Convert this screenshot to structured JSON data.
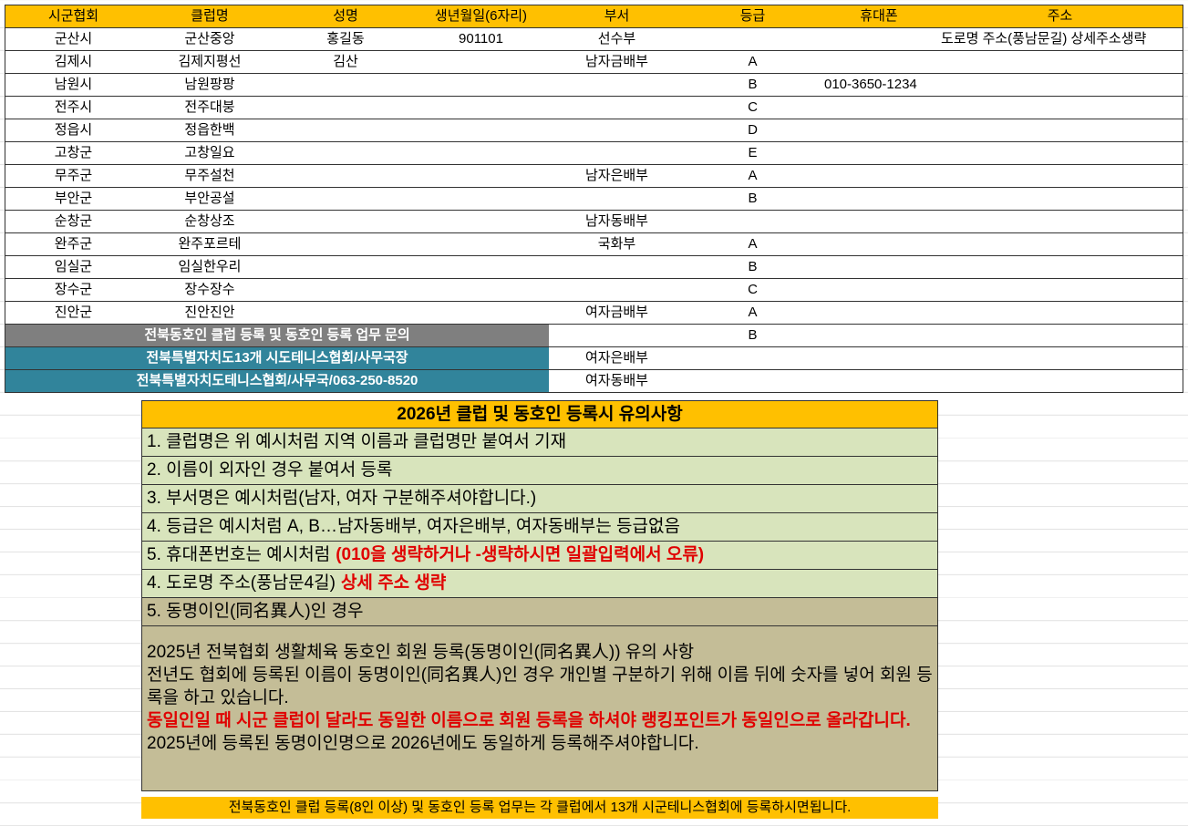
{
  "table": {
    "header": [
      "시군협회",
      "클럽명",
      "성명",
      "생년월일(6자리)",
      "부서",
      "등급",
      "휴대폰",
      "주소"
    ],
    "rows": [
      {
        "region": "군산시",
        "club": "군산중앙",
        "name": "홍길동",
        "birth": "901101",
        "dept": "선수부",
        "address": "도로명 주소(풍남문길) 상세주소생략"
      },
      {
        "region": "김제시",
        "club": "김제지평선",
        "name": "김산",
        "dept": "남자금배부",
        "grade": "A"
      },
      {
        "region": "남원시",
        "club": "남원팡팡",
        "grade": "B",
        "phone": "010-3650-1234"
      },
      {
        "region": "전주시",
        "club": "전주대붕",
        "grade": "C"
      },
      {
        "region": "정읍시",
        "club": "정읍한백",
        "grade": "D"
      },
      {
        "region": "고창군",
        "club": "고창일요",
        "grade": "E"
      },
      {
        "region": "무주군",
        "club": "무주설천",
        "dept": "남자은배부",
        "grade": "A"
      },
      {
        "region": "부안군",
        "club": "부안공설",
        "grade": "B"
      },
      {
        "region": "순창군",
        "club": "순창상조",
        "dept": "남자동배부"
      },
      {
        "region": "완주군",
        "club": "완주포르테",
        "dept": "국화부",
        "grade": "A"
      },
      {
        "region": "임실군",
        "club": "임실한우리",
        "grade": "B"
      },
      {
        "region": "장수군",
        "club": "장수장수",
        "grade": "C"
      },
      {
        "region": "진안군",
        "club": "진안진안",
        "dept": "여자금배부",
        "grade": "A"
      }
    ],
    "extra_rows": [
      {
        "label": "전북동호인 클럽 등록 및 동호인 등록 업무 문의",
        "grade": "B"
      },
      {
        "label": "전북특별자치도13개 시도테니스협회/사무국장",
        "dept": "여자은배부"
      },
      {
        "label": "전북특별자치도테니스협회/사무국/063-250-8520",
        "dept": "여자동배부"
      }
    ]
  },
  "notes": {
    "title": "2026년 클럽 및 동호인 등록시 유의사항",
    "items": [
      {
        "text": "1. 클럽명은 위 예시처럼 지역 이름과 클럽명만 붙여서 기재"
      },
      {
        "text": "2. 이름이 외자인 경우 붙여서 등록"
      },
      {
        "text": "3. 부서명은 예시처럼(남자, 여자 구분해주셔야합니다.)"
      },
      {
        "text": "4. 등급은 예시처럼 A, B…남자동배부, 여자은배부, 여자동배부는 등급없음"
      },
      {
        "text": "5. 휴대폰번호는 예시처럼",
        "warning": "(010을 생략하거나 -생략하시면 일괄입력에서 오류)"
      },
      {
        "text": "4. 도로명 주소(풍남문4길)",
        "warning": "상세 주소 생략"
      }
    ],
    "same_name": {
      "heading": "5. 동명이인(同名異人)인 경우",
      "lines": [
        {
          "text": "2025년 전북협회 생활체육 동호인 회원 등록(동명이인(同名異人)) 유의 사항"
        },
        {
          "text": "전년도 협회에 등록된 이름이 동명이인(同名異人)인 경우 개인별 구분하기 위해 이름 뒤에 숫자를 넣어 회원 등록을 하고 있습니다."
        },
        {
          "text": "동일인일 때 시군 클럽이 달라도 동일한 이름으로 회원 등록을 하셔야 랭킹포인트가 동일인으로 올라갑니다.",
          "warning": true
        },
        {
          "text": "2025년에 등록된 동명이인명으로 2026년에도 동일하게 등록해주셔야합니다."
        }
      ]
    },
    "footer": "전북동호인 클럽 등록(8인 이상) 및 동호인 등록 업무는 각 클럽에서 13개 시군테니스협회에 등록하시면됩니다."
  }
}
